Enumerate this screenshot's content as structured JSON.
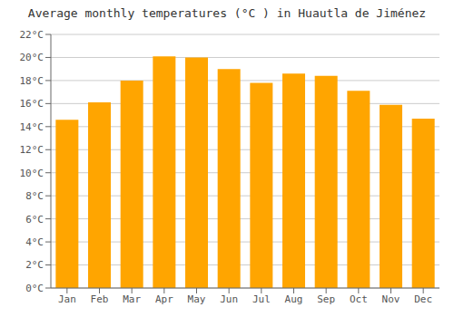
{
  "chart_data": {
    "type": "bar",
    "title": "Average monthly temperatures (°C ) in Huautla de Jiménez",
    "categories": [
      "Jan",
      "Feb",
      "Mar",
      "Apr",
      "May",
      "Jun",
      "Jul",
      "Aug",
      "Sep",
      "Oct",
      "Nov",
      "Dec"
    ],
    "values": [
      14.6,
      16.1,
      18.0,
      20.1,
      20.0,
      19.0,
      17.8,
      18.6,
      18.4,
      17.1,
      15.9,
      14.7
    ],
    "color": "#FFA500",
    "ylim": [
      0,
      22
    ],
    "yticks": [
      {
        "value": 0,
        "label": "0°C"
      },
      {
        "value": 2,
        "label": "2°C"
      },
      {
        "value": 4,
        "label": "4°C"
      },
      {
        "value": 6,
        "label": "6°C"
      },
      {
        "value": 8,
        "label": "8°C"
      },
      {
        "value": 10,
        "label": "10°C"
      },
      {
        "value": 12,
        "label": "12°C"
      },
      {
        "value": 14,
        "label": "14°C"
      },
      {
        "value": 16,
        "label": "16°C"
      },
      {
        "value": 18,
        "label": "18°C"
      },
      {
        "value": 20,
        "label": "20°C"
      },
      {
        "value": 22,
        "label": "22°C"
      }
    ],
    "grid": true
  }
}
